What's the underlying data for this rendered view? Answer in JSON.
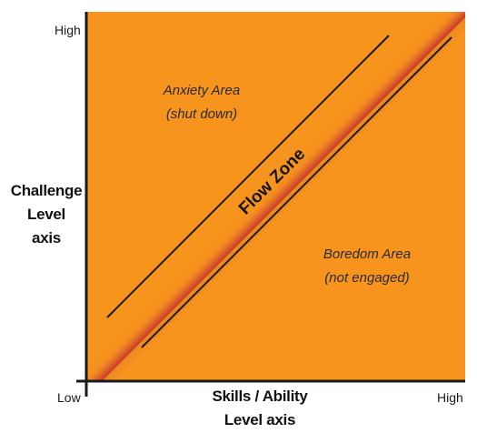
{
  "y_axis": {
    "title_lines": [
      "Challenge",
      "Level",
      "axis"
    ],
    "high_label": "High"
  },
  "x_axis": {
    "title_lines": [
      "Skills / Ability",
      "Level axis"
    ],
    "low_label": "Low",
    "high_label": "High"
  },
  "regions": {
    "anxiety": {
      "title": "Anxiety Area",
      "subtitle": "(shut down)"
    },
    "boredom": {
      "title": "Boredom Area",
      "subtitle": "(not engaged)"
    },
    "flow": {
      "title": "Flow Zone"
    }
  },
  "colors": {
    "background": "#f7941d",
    "flow_center": "#c1272d",
    "axis": "#1a1a1a"
  }
}
